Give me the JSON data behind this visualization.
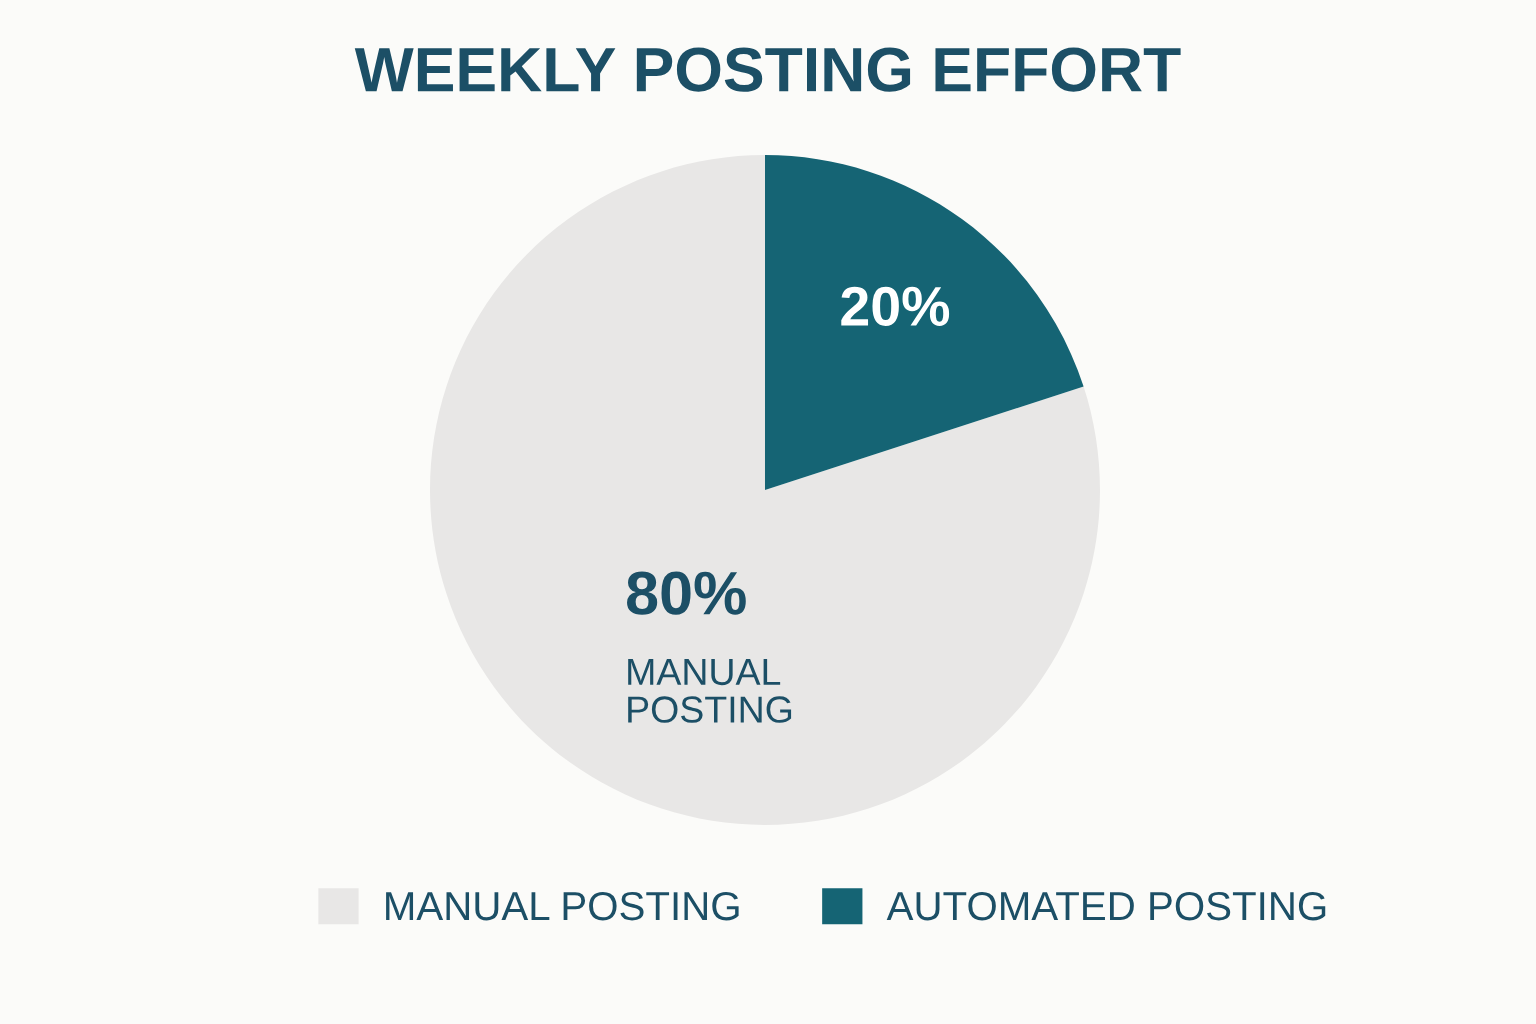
{
  "chart_data": {
    "type": "pie",
    "title": "WEEKLY POSTING EFFORT",
    "categories": [
      "MANUAL POSTING",
      "AUTOMATED POSTING"
    ],
    "values": [
      80,
      20
    ],
    "colors": [
      "#e8e7e6",
      "#156474"
    ],
    "value_labels": [
      "80%",
      "20%"
    ],
    "annotations": [
      "MANUAL\nPOSTING"
    ],
    "legend": "bottom"
  }
}
